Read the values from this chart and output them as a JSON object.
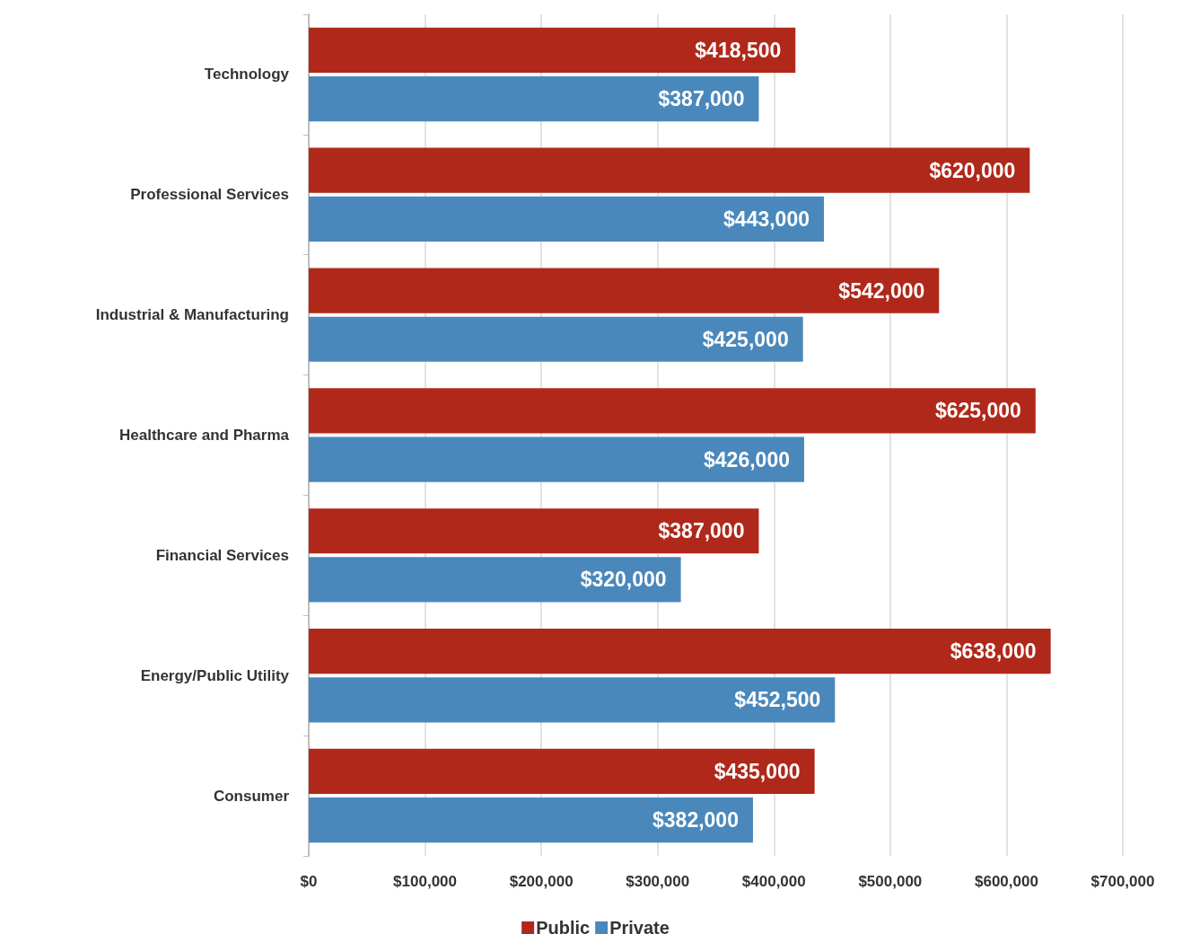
{
  "chart_data": {
    "type": "bar",
    "orientation": "horizontal",
    "categories": [
      "Technology",
      "Professional Services",
      "Industrial & Manufacturing",
      "Healthcare and Pharma",
      "Financial Services",
      "Energy/Public Utility",
      "Consumer"
    ],
    "series": [
      {
        "name": "Public",
        "color": "#b0281a",
        "values": [
          418500,
          620000,
          542000,
          625000,
          387000,
          638000,
          435000
        ],
        "value_labels": [
          "$418,500",
          "$620,000",
          "$542,000",
          "$625,000",
          "$387,000",
          "$638,000",
          "$435,000"
        ]
      },
      {
        "name": "Private",
        "color": "#4a88bc",
        "values": [
          387000,
          443000,
          425000,
          426000,
          320000,
          452500,
          382000
        ],
        "value_labels": [
          "$387,000",
          "$443,000",
          "$425,000",
          "$426,000",
          "$320,000",
          "$452,500",
          "$382,000"
        ]
      }
    ],
    "xlim": [
      0,
      700000
    ],
    "xticks": [
      {
        "value": 0,
        "label": "$0"
      },
      {
        "value": 100000,
        "label": "$100,000"
      },
      {
        "value": 200000,
        "label": "$200,000"
      },
      {
        "value": 300000,
        "label": "$300,000"
      },
      {
        "value": 400000,
        "label": "$400,000"
      },
      {
        "value": 500000,
        "label": "$500,000"
      },
      {
        "value": 600000,
        "label": "$600,000"
      },
      {
        "value": 700000,
        "label": "$700,000"
      }
    ],
    "grid": "x",
    "legend": "bottom"
  }
}
